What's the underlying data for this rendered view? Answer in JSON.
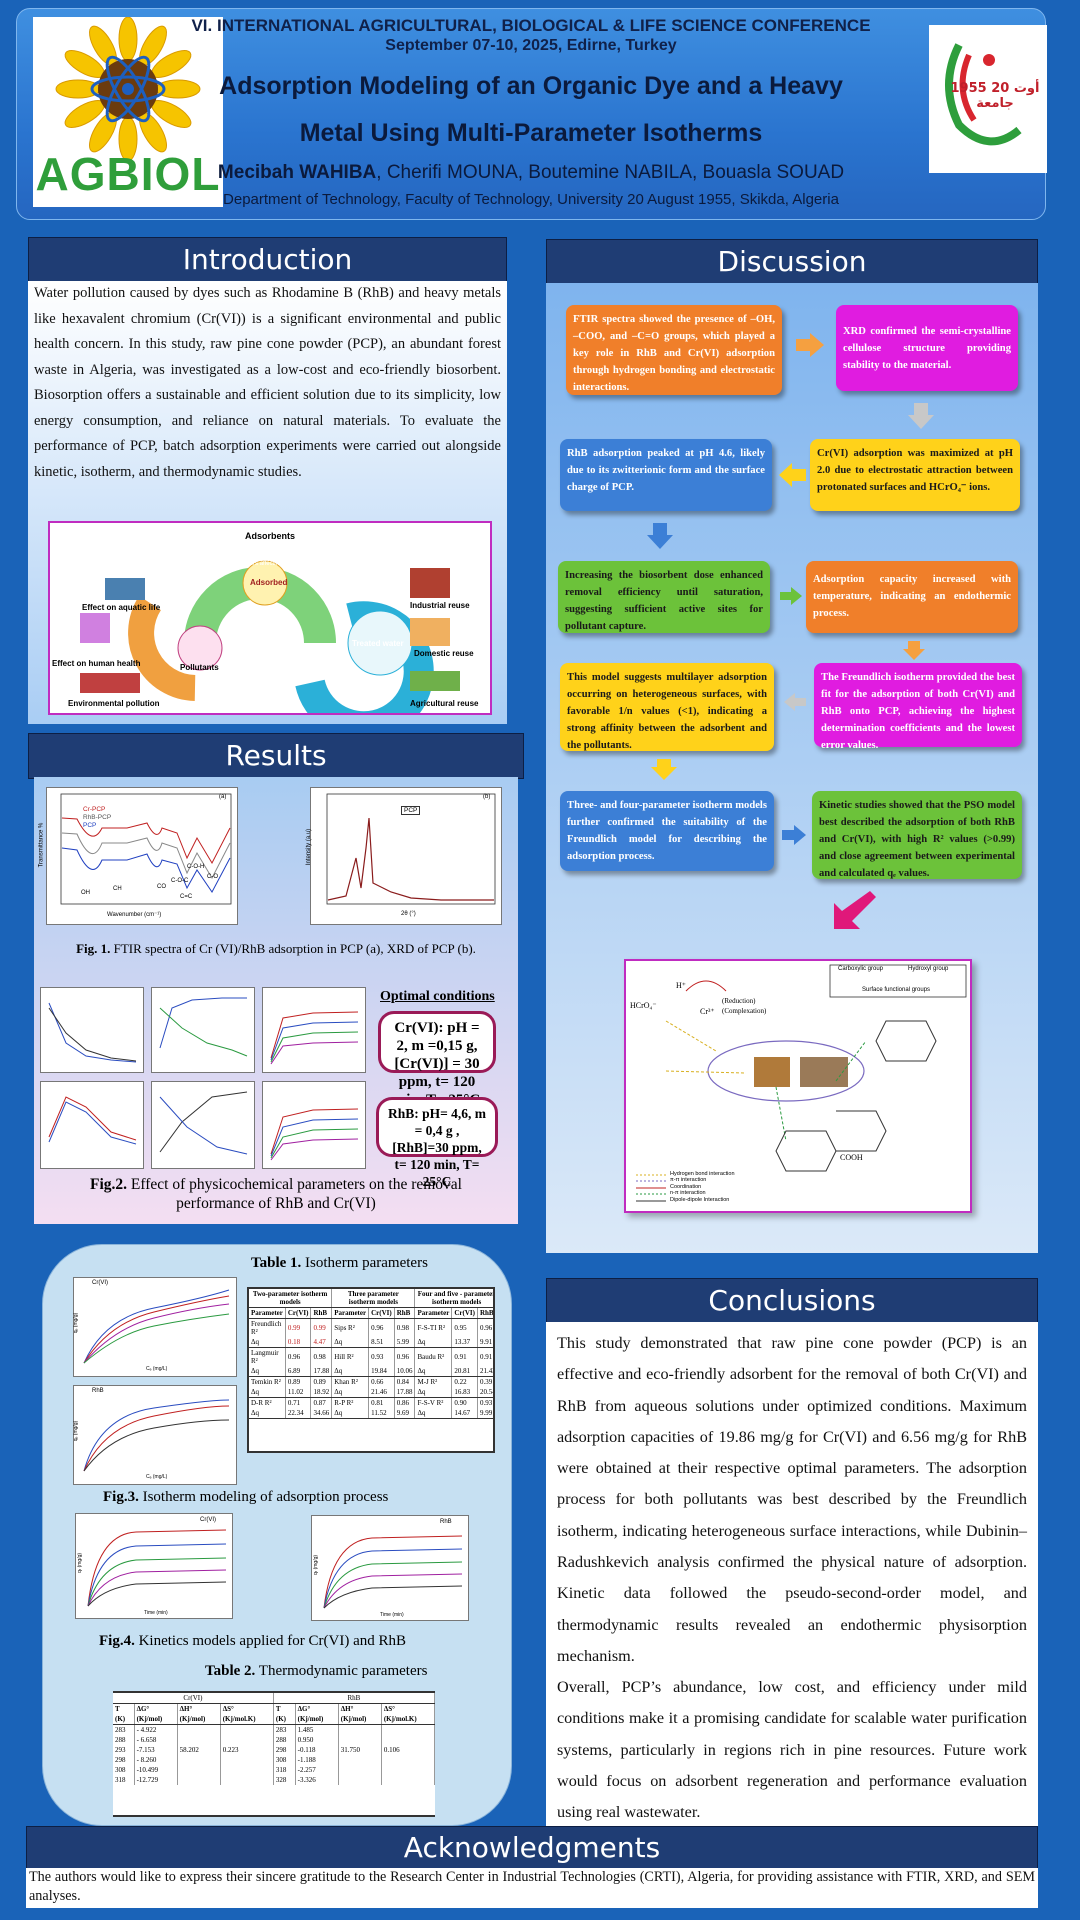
{
  "header": {
    "conference": "VI. INTERNATIONAL AGRICULTURAL, BIOLOGICAL & LIFE SCIENCE CONFERENCE",
    "dates": "September 07-10, 2025, Edirne, Turkey",
    "title_line1": "Adsorption Modeling of an Organic Dye and a Heavy",
    "title_line2": "Metal Using Multi-Parameter Isotherms",
    "lead_author": "Mecibah WAHIBA",
    "other_authors": ", Cherifi MOUNA, Boutemine NABILA, Bouasla SOUAD",
    "affiliation": "Department of Technology, Faculty of Technology, University  20 August 1955, Skikda, Algeria",
    "logo_left_text": "AGBIOL",
    "logo_right_text": "1955 أوت 20 جامعة"
  },
  "introduction": {
    "heading": "Introduction",
    "text": "Water pollution caused by dyes such as Rhodamine B (RhB) and heavy metals like hexavalent chromium (Cr(VI)) is a significant environmental and public health concern. In this study, raw pine cone powder (PCP), an abundant forest waste in Algeria, was investigated as a low-cost and eco-friendly biosorbent. Biosorption offers a sustainable and efficient solution due to its simplicity, low energy consumption, and reliance on natural materials. To evaluate the performance of PCP, batch adsorption experiments were carried out alongside kinetic, isotherm, and thermodynamic studies.",
    "figure_labels": {
      "adsorbents": "Adsorbents",
      "aquatic": "Effect on aquatic life",
      "human": "Effect on human health",
      "environmental": "Environmental pollution",
      "industrial": "Industrial reuse",
      "domestic": "Domestic reuse",
      "agricultural": "Agricultural reuse",
      "treated": "Treated water",
      "pollutants": "Pollutants",
      "adsorbed": "Adsorbed",
      "factors": "pH - Time - Temperature - Adsorbent dose - Dye concentration",
      "factors_sub": "Factors affecting adsorption"
    }
  },
  "results": {
    "heading": "Results",
    "fig1_caption_bold": "Fig. 1.",
    "fig1_caption": " FTIR spectra of Cr (VI)/RhB adsorption in PCP (a), XRD of PCP (b).",
    "ftir_legend": [
      "Cr-PCP",
      "RhB-PCP",
      "PCP"
    ],
    "ftir_label": "(a)",
    "ftir_xlabel": "Wavenumber (cm⁻¹)",
    "ftir_ylabel": "Transmittance %",
    "ftir_peaks": [
      "OH",
      "CH",
      "C-O-H",
      "C-O",
      "CO",
      "C-O-C",
      "C=C"
    ],
    "xrd_label": "(b)",
    "xrd_legend": "PCP",
    "xrd_xlabel": "2θ (°)",
    "xrd_ylabel": "Intensity (a.u)",
    "optimal_heading": "Optimal conditions",
    "cond_cr": "Cr(VI):  pH  = 2, m =0,15 g, [Cr(VI)] = 30 ppm, t= 120 min, T= 25°C",
    "cond_rhb": "RhB:  pH= 4,6, m = 0,4 g , [RhB]=30 ppm, t= 120 min, T= 25°C",
    "fig2_caption_bold": "Fig.2.",
    "fig2_caption": " Effect of physicochemical parameters on the removal performance of RhB and Cr(VI)",
    "table1_title_bold": "Table 1.",
    "table1_title": " Isotherm parameters",
    "table1": {
      "groups": [
        "Two-parameter isotherm models",
        "Three parameter isotherm models",
        "Four and five - parameter isotherm models"
      ],
      "subheaders": [
        "Parameter",
        "Cr(VI)",
        "RhB",
        "Parameter",
        "Cr(VI)",
        "RhB",
        "Parameter",
        "Cr(VI)",
        "RhB"
      ],
      "rows": [
        [
          "Freundlich R²",
          "0.99",
          "0.99",
          "Sips R²",
          "0.96",
          "0.98",
          "F-S-TI R²",
          "0.95",
          "0.96"
        ],
        [
          "Δq",
          "0.18",
          "4.47",
          "Δq",
          "8.51",
          "5.99",
          "Δq",
          "13.37",
          "9.91"
        ],
        [
          "Langmuir R²",
          "0.96",
          "0.98",
          "Hill R²",
          "0.93",
          "0.96",
          "Baudu R²",
          "0.91",
          "0.91"
        ],
        [
          "Δq",
          "6.89",
          "17.88",
          "Δq",
          "19.84",
          "10.06",
          "Δq",
          "20.81",
          "21.43"
        ],
        [
          "Temkin R²",
          "0.89",
          "0.89",
          "Khan R²",
          "0.66",
          "0.84",
          "M-J R²",
          "0.22",
          "0.39"
        ],
        [
          "Δq",
          "11.02",
          "18.92",
          "Δq",
          "21.46",
          "17.88",
          "Δq",
          "16.83",
          "20.54"
        ],
        [
          "D-R R²",
          "0.71",
          "0.87",
          "R-P R²",
          "0.81",
          "0.86",
          "F-S-V R²",
          "0.90",
          "0.93"
        ],
        [
          "Δq",
          "22.34",
          "34.66",
          "Δq",
          "11.52",
          "9.69",
          "Δq",
          "14.67",
          "9.99"
        ]
      ]
    },
    "fig3_caption_bold": "Fig.3.",
    "fig3_caption": " Isotherm modeling of adsorption process",
    "fig3_labels": [
      "Cr(VI)",
      "RhB"
    ],
    "fig3_xlabel": "Cₑ (mg/L)",
    "fig3_ylabel": "qₑ (mg/g)",
    "fig4_caption_bold": "Fig.4.",
    "fig4_caption": " Kinetics models applied for Cr(VI) and RhB",
    "fig4_labels": [
      "Cr(VI)",
      "RhB"
    ],
    "fig4_xlabel": "Time (min)",
    "fig4_ylabel": "qₜ (mg/g)",
    "table2_title_bold": "Table 2.",
    "table2_title": " Thermodynamic parameters",
    "table2": {
      "groups": [
        "Cr(VI)",
        "RhB"
      ],
      "headers": [
        "T",
        "ΔG°",
        "ΔH°",
        "ΔS°",
        "T",
        "ΔG°",
        "ΔH°",
        "ΔS°"
      ],
      "units": [
        "(K)",
        "(Kj/mol)",
        "(Kj/mol)",
        "(Kj/mol.K)",
        "(K)",
        "(Kj/mol)",
        "(Kj/mol)",
        "(Kj/mol.K)"
      ],
      "rows": [
        [
          "283",
          "- 4.922",
          "",
          "",
          "283",
          "1.485",
          "",
          ""
        ],
        [
          "288",
          "- 6.658",
          "",
          "",
          "288",
          "0.950",
          "",
          ""
        ],
        [
          "293",
          "-7.153",
          "58.202",
          "0.223",
          "298",
          "-0.118",
          "31.750",
          "0.106"
        ],
        [
          "298",
          "- 8.260",
          "",
          "",
          "308",
          "-1.188",
          "",
          ""
        ],
        [
          "308",
          "-10.499",
          "",
          "",
          "318",
          "-2.257",
          "",
          ""
        ],
        [
          "318",
          "-12.729",
          "",
          "",
          "328",
          "-3.326",
          "",
          ""
        ]
      ]
    }
  },
  "discussion": {
    "heading": "Discussion",
    "boxes": [
      "FTIR spectra showed the presence of –OH, –COO, and –C=O groups, which played a key role in RhB and Cr(VI) adsorption through hydrogen bonding and electrostatic interactions.",
      "XRD confirmed the semi-crystalline cellulose structure providing stability to the material.",
      "Cr(VI) adsorption was maximized at pH 2.0 due to electrostatic attraction between protonated surfaces and HCrO₄⁻ ions.",
      "RhB adsorption peaked at pH 4.6, likely due to its zwitterionic form and the surface charge of PCP.",
      "Increasing the biosorbent dose enhanced removal efficiency until saturation, suggesting sufficient active sites for pollutant capture.",
      "Adsorption capacity increased with temperature, indicating an endothermic process.",
      "The Freundlich isotherm provided the best fit for the adsorption of both Cr(VI) and RhB onto PCP, achieving the highest determination coefficients and the lowest error values.",
      "This model suggests multilayer adsorption occurring on heterogeneous surfaces, with favorable 1/n values (<1), indicating a strong affinity between the adsorbent and the pollutants.",
      "Three- and four-parameter isotherm models further confirmed the suitability of the Freundlich model for describing the adsorption process.",
      "Kinetic studies showed that the PSO model best described the adsorption of both RhB and Cr(VI), with high R² values (>0.99) and close agreement between experimental and calculated qₑ values."
    ],
    "mechanism_labels": {
      "carboxylic": "Carboxylic group",
      "hydroxyl": "Hydroxyl group",
      "surface": "Surface functional groups",
      "hcro4": "HCrO₄⁻",
      "reduction": "(Reduction)",
      "complexation": "(Complexation)",
      "h_plus": "H⁺",
      "cr3": "Cr³⁺",
      "cooh": "COOH",
      "legend": [
        "Hydrogen bond interaction",
        "π-π interaction",
        "Coordination",
        "n-π interaction",
        "Dipole-dipole Interaction"
      ]
    }
  },
  "conclusions": {
    "heading": "Conclusions",
    "p1": "This study demonstrated that raw pine cone powder (PCP) is an effective and eco-friendly adsorbent for the removal of both Cr(VI) and RhB from aqueous solutions under optimized conditions. Maximum adsorption capacities of 19.86 mg/g for Cr(VI) and 6.56 mg/g for RhB were obtained at their respective optimal parameters. The adsorption process for both pollutants was best described by the Freundlich isotherm, indicating heterogeneous surface interactions, while Dubinin–Radushkevich analysis confirmed the physical nature of adsorption. Kinetic data followed the pseudo-second-order model, and thermodynamic results revealed an endothermic physisorption mechanism.",
    "p2": "Overall, PCP’s abundance, low cost, and efficiency under mild conditions make it a promising candidate for scalable water purification systems, particularly in regions rich in pine resources. Future work would focus on adsorbent regeneration and performance evaluation using real wastewater."
  },
  "acknowledgments": {
    "heading": "Acknowledgments",
    "text": "The authors would like to express their sincere gratitude to the Research Center in Industrial Technologies (CRTI), Algeria, for providing assistance with FTIR, XRD, and SEM analyses."
  },
  "colors": {
    "background": "#1a63b8",
    "panel_head": "#1f3d74",
    "orange": "#f07f2a",
    "magenta": "#e01ce0",
    "yellow": "#ffd21a",
    "blue": "#3c7fd6",
    "green": "#6cc23a",
    "cond_border": "#9a1a57"
  }
}
